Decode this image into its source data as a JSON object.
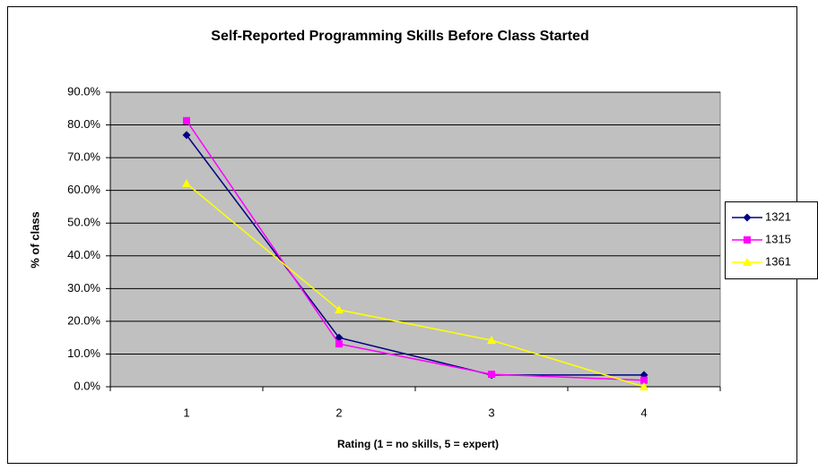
{
  "chart_data": {
    "type": "line",
    "title": "Self-Reported Programming Skills Before Class Started",
    "x_label": "Rating (1 = no skills, 5 = expert)",
    "y_label": "% of class",
    "categories": [
      "1",
      "2",
      "3",
      "4"
    ],
    "series": [
      {
        "name": "1321",
        "color": "#000080",
        "marker": "diamond",
        "values": [
          76.9,
          15.0,
          3.6,
          3.6
        ]
      },
      {
        "name": "1315",
        "color": "#ff00ff",
        "marker": "square",
        "values": [
          81.3,
          13.1,
          3.8,
          2.0
        ]
      },
      {
        "name": "1361",
        "color": "#ffff00",
        "marker": "triangle",
        "values": [
          62.1,
          23.5,
          14.2,
          0
        ]
      }
    ],
    "ylim": [
      0,
      90
    ],
    "yticks": [
      {
        "value": 0,
        "label": "0.0%"
      },
      {
        "value": 10,
        "label": "10.0%"
      },
      {
        "value": 20,
        "label": "20.0%"
      },
      {
        "value": 30,
        "label": "30.0%"
      },
      {
        "value": 40,
        "label": "40.0%"
      },
      {
        "value": 50,
        "label": "50.0%"
      },
      {
        "value": 60,
        "label": "60.0%"
      },
      {
        "value": 70,
        "label": "70.0%"
      },
      {
        "value": 80,
        "label": "80.0%"
      },
      {
        "value": 90,
        "label": "90.0%"
      }
    ],
    "grid": true,
    "legend": "right"
  }
}
